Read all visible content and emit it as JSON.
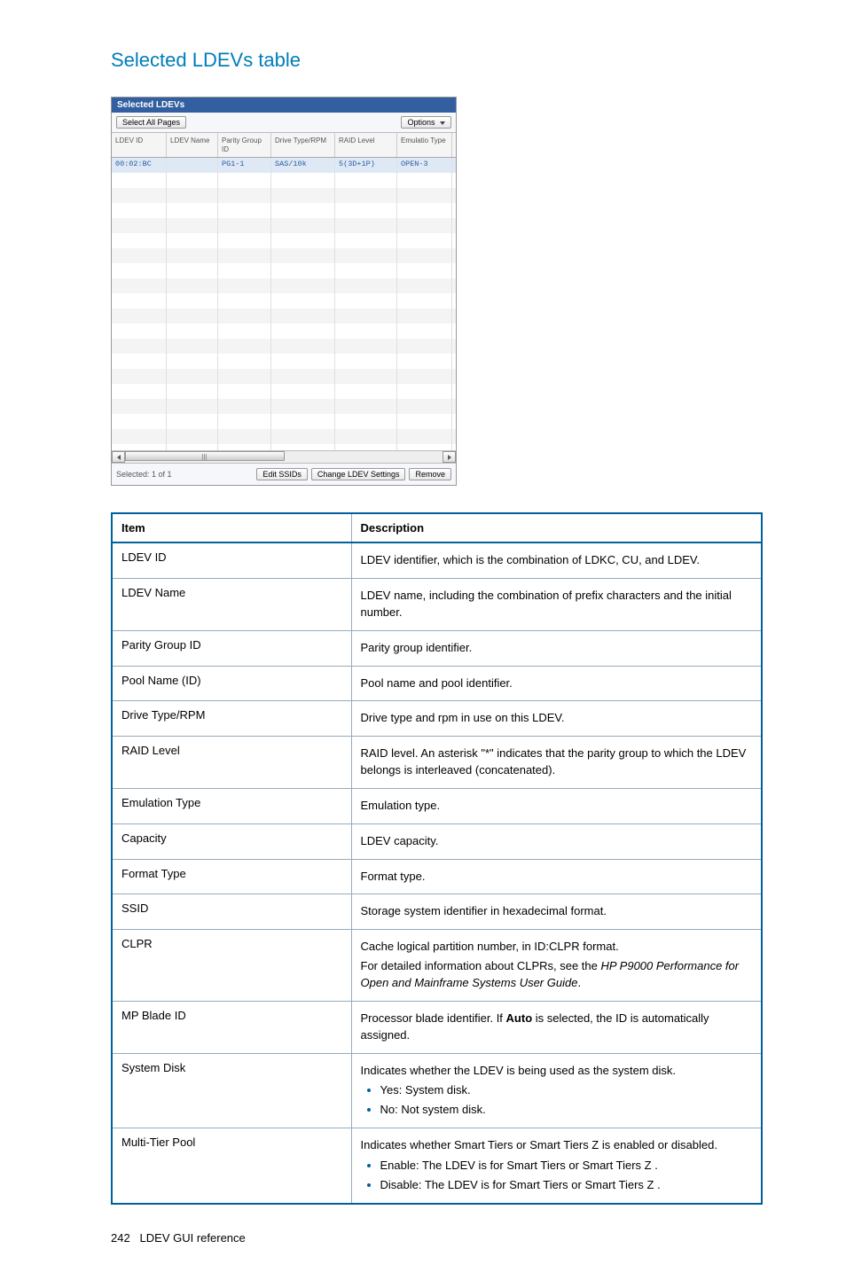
{
  "title": "Selected LDEVs table",
  "screenshot": {
    "panel_title": "Selected LDEVs",
    "select_all_label": "Select All Pages",
    "options_label": "Options",
    "columns": [
      "LDEV ID",
      "LDEV\nName",
      "Parity\nGroup ID",
      "Drive\nType/RPM",
      "RAID\nLevel",
      "Emulatio\nType"
    ],
    "row": {
      "ldev_id": "00:02:BC",
      "ldev_name": "",
      "parity_group": "PG1-1",
      "drive": "SAS/10k",
      "raid": "5(3D+1P)",
      "emu": "OPEN-3"
    },
    "blank_rows": 19,
    "selected_label": "Selected: 1   of  1",
    "footer_buttons": [
      "Edit SSIDs",
      "Change LDEV Settings",
      "Remove"
    ]
  },
  "desc_headers": {
    "item": "Item",
    "description": "Description"
  },
  "rows": [
    {
      "item": "LDEV ID",
      "desc": "<p>LDEV identifier, which is the combination of LDKC, CU, and LDEV.</p>"
    },
    {
      "item": "LDEV Name",
      "desc": "<p>LDEV name, including the combination of prefix characters and the initial number.</p>"
    },
    {
      "item": "Parity Group ID",
      "desc": "<p>Parity group identifier.</p>"
    },
    {
      "item": "Pool Name (ID)",
      "desc": "<p>Pool name and pool identifier.</p>"
    },
    {
      "item": "Drive Type/RPM",
      "desc": "<p>Drive type and rpm in use on this LDEV.</p>"
    },
    {
      "item": "RAID Level",
      "desc": "<p>RAID level. An asterisk \"*\" indicates that the parity group to which the LDEV belongs is interleaved (concatenated).</p>"
    },
    {
      "item": "Emulation Type",
      "desc": "<p>Emulation type.</p>"
    },
    {
      "item": "Capacity",
      "desc": "<p>LDEV capacity.</p>"
    },
    {
      "item": "Format Type",
      "desc": "<p>Format type.</p>"
    },
    {
      "item": "SSID",
      "desc": "<p>Storage system identifier in hexadecimal format.</p>"
    },
    {
      "item": "CLPR",
      "desc": "<p>Cache logical partition number, in ID:CLPR format.</p><p>For detailed information about CLPRs, see the <span class=\"italic\">HP P9000 Performance for Open and Mainframe Systems User Guide</span>.</p>"
    },
    {
      "item": "MP Blade ID",
      "desc": "<p>Processor blade identifier. If <span class=\"bold\">Auto</span> is selected, the ID is automatically assigned.</p>"
    },
    {
      "item": "System Disk",
      "desc": "<p>Indicates whether the LDEV is being used as the system disk.</p><ul><li>Yes: System disk.</li><li>No: Not system disk.</li></ul>"
    },
    {
      "item": "Multi-Tier Pool",
      "desc": "<p>Indicates whether Smart Tiers or Smart Tiers Z is enabled or disabled.</p><ul><li>Enable: The LDEV is for Smart Tiers or Smart Tiers Z .</li><li>Disable: The LDEV is for Smart Tiers or Smart Tiers Z .</li></ul>"
    }
  ],
  "footer": {
    "page": "242",
    "section": "LDEV GUI reference"
  }
}
